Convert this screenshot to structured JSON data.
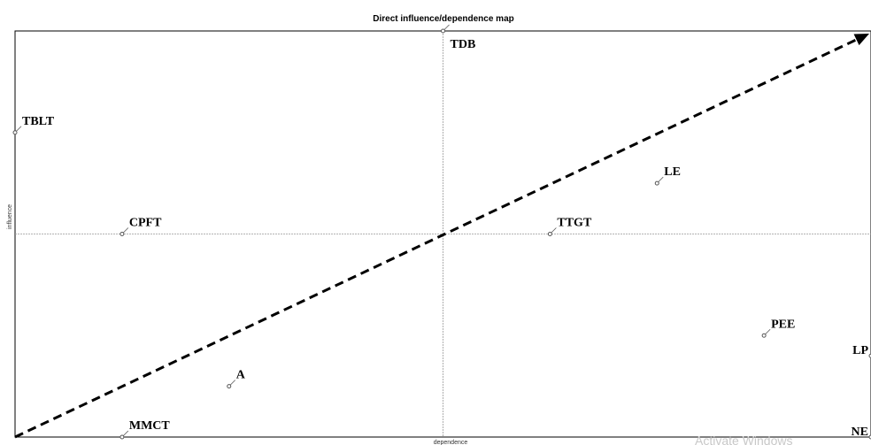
{
  "chart_data": {
    "type": "scatter",
    "title": "Direct influence/dependence map",
    "xlabel": "dependence",
    "ylabel": "influence",
    "xlim": [
      0,
      1
    ],
    "ylim": [
      0,
      1
    ],
    "quadrant_lines": {
      "x": 0.5,
      "y": 0.5
    },
    "diagonal_arrow": true,
    "grid": false,
    "points": [
      {
        "label": "TDB",
        "x": 0.5,
        "y": 1.0
      },
      {
        "label": "TBLT",
        "x": 0.0,
        "y": 0.75
      },
      {
        "label": "LE",
        "x": 0.75,
        "y": 0.625
      },
      {
        "label": "CPFT",
        "x": 0.125,
        "y": 0.5
      },
      {
        "label": "TTGT",
        "x": 0.625,
        "y": 0.5
      },
      {
        "label": "PEE",
        "x": 0.875,
        "y": 0.25
      },
      {
        "label": "LP",
        "x": 1.0,
        "y": 0.2
      },
      {
        "label": "A",
        "x": 0.25,
        "y": 0.125
      },
      {
        "label": "MMCT",
        "x": 0.125,
        "y": 0.0
      },
      {
        "label": "NE",
        "x": 1.0,
        "y": 0.0
      }
    ]
  },
  "watermark": "Activate Windows",
  "colors": {
    "frame": "#000000",
    "quadrant": "#9a9a9a",
    "arrow": "#000000",
    "marker": "#555555"
  }
}
